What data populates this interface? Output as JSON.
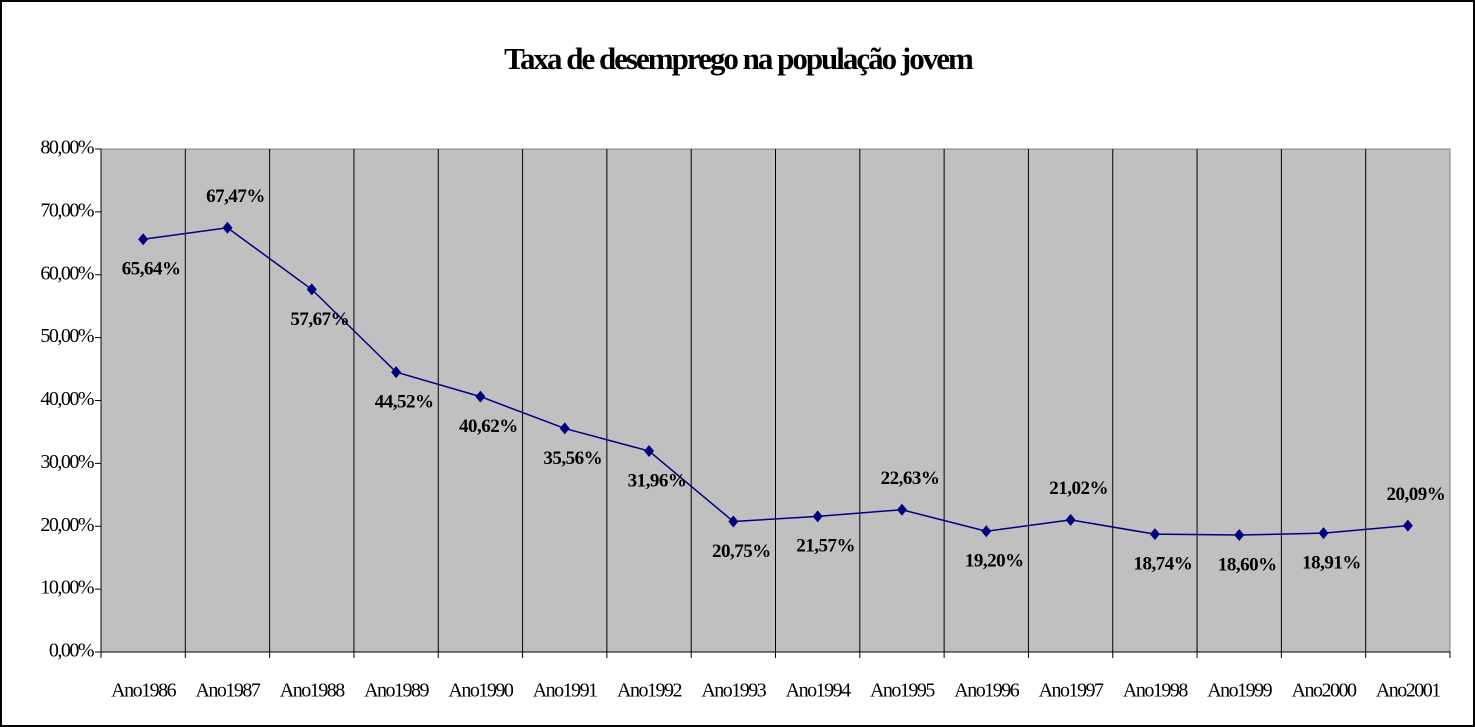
{
  "chart_data": {
    "type": "line",
    "title": "Taxa de desemprego na população jovem",
    "categories": [
      "Ano1986",
      "Ano1987",
      "Ano1988",
      "Ano1989",
      "Ano1990",
      "Ano1991",
      "Ano1992",
      "Ano1993",
      "Ano1994",
      "Ano1995",
      "Ano1996",
      "Ano1997",
      "Ano1998",
      "Ano1999",
      "Ano2000",
      "Ano2001"
    ],
    "series": [
      {
        "name": "Taxa de desemprego",
        "color": "#000080",
        "values": [
          65.64,
          67.47,
          57.67,
          44.52,
          40.62,
          35.56,
          31.96,
          20.75,
          21.57,
          22.63,
          19.2,
          21.02,
          18.74,
          18.6,
          18.91,
          20.09
        ],
        "value_labels": [
          "65,64%",
          "67,47%",
          "57,67%",
          "44,52%",
          "40,62%",
          "35,56%",
          "31,96%",
          "20,75%",
          "21,57%",
          "22,63%",
          "19,20%",
          "21,02%",
          "18,74%",
          "18,60%",
          "18,91%",
          "20,09%"
        ]
      }
    ],
    "ylim": [
      0,
      80
    ],
    "yticks": [
      {
        "value": 0,
        "label": "0,00%"
      },
      {
        "value": 10,
        "label": "10,00%"
      },
      {
        "value": 20,
        "label": "20,00%"
      },
      {
        "value": 30,
        "label": "30,00%"
      },
      {
        "value": 40,
        "label": "40,00%"
      },
      {
        "value": 50,
        "label": "50,00%"
      },
      {
        "value": 60,
        "label": "60,00%"
      },
      {
        "value": 70,
        "label": "70,00%"
      },
      {
        "value": 80,
        "label": "80,00%"
      }
    ],
    "plot_background": "#c0c0c0",
    "grid": true
  }
}
